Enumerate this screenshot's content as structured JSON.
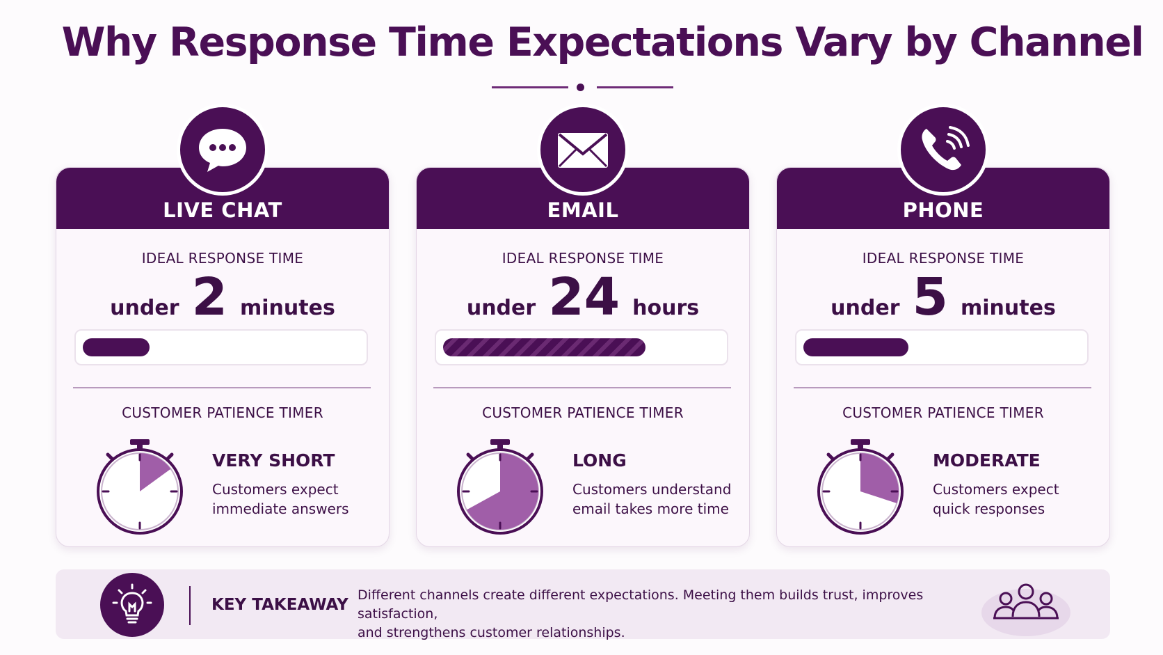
{
  "title": "Why Response Time Expectations Vary by Channel",
  "colors": {
    "primary": "#4a0f55",
    "accent": "#a05ea8",
    "background": "#fdfbfd"
  },
  "cards": [
    {
      "icon": "chat-bubble-icon",
      "name": "LIVE CHAT",
      "ideal_label": "IDEAL RESPONSE TIME",
      "prefix": "under",
      "value": "2",
      "unit": "minutes",
      "bar_fill_fraction": 0.24,
      "bar_striped": false,
      "patience_label": "CUSTOMER PATIENCE TIMER",
      "patience_fraction": 0.15,
      "patience_level": "VERY SHORT",
      "desc_line1": "Customers expect",
      "desc_line2": "immediate answers"
    },
    {
      "icon": "envelope-icon",
      "name": "EMAIL",
      "ideal_label": "IDEAL RESPONSE TIME",
      "prefix": "under",
      "value": "24",
      "unit": "hours",
      "bar_fill_fraction": 0.73,
      "bar_striped": true,
      "patience_label": "CUSTOMER PATIENCE TIMER",
      "patience_fraction": 0.67,
      "patience_level": "LONG",
      "desc_line1": "Customers understand",
      "desc_line2": "email takes more time"
    },
    {
      "icon": "phone-icon",
      "name": "PHONE",
      "ideal_label": "IDEAL RESPONSE TIME",
      "prefix": "under",
      "value": "5",
      "unit": "minutes",
      "bar_fill_fraction": 0.38,
      "bar_striped": false,
      "patience_label": "CUSTOMER PATIENCE TIMER",
      "patience_fraction": 0.3,
      "patience_level": "MODERATE",
      "desc_line1": "Customers expect",
      "desc_line2": "quick responses"
    }
  ],
  "takeaway": {
    "icon": "lightbulb-icon",
    "label": "KEY TAKEAWAY",
    "text_line1": "Different channels create different expectations.  Meeting them builds trust, improves satisfaction,",
    "text_line2": "and strengthens customer relationships.",
    "decor_icon": "people-group-icon"
  }
}
